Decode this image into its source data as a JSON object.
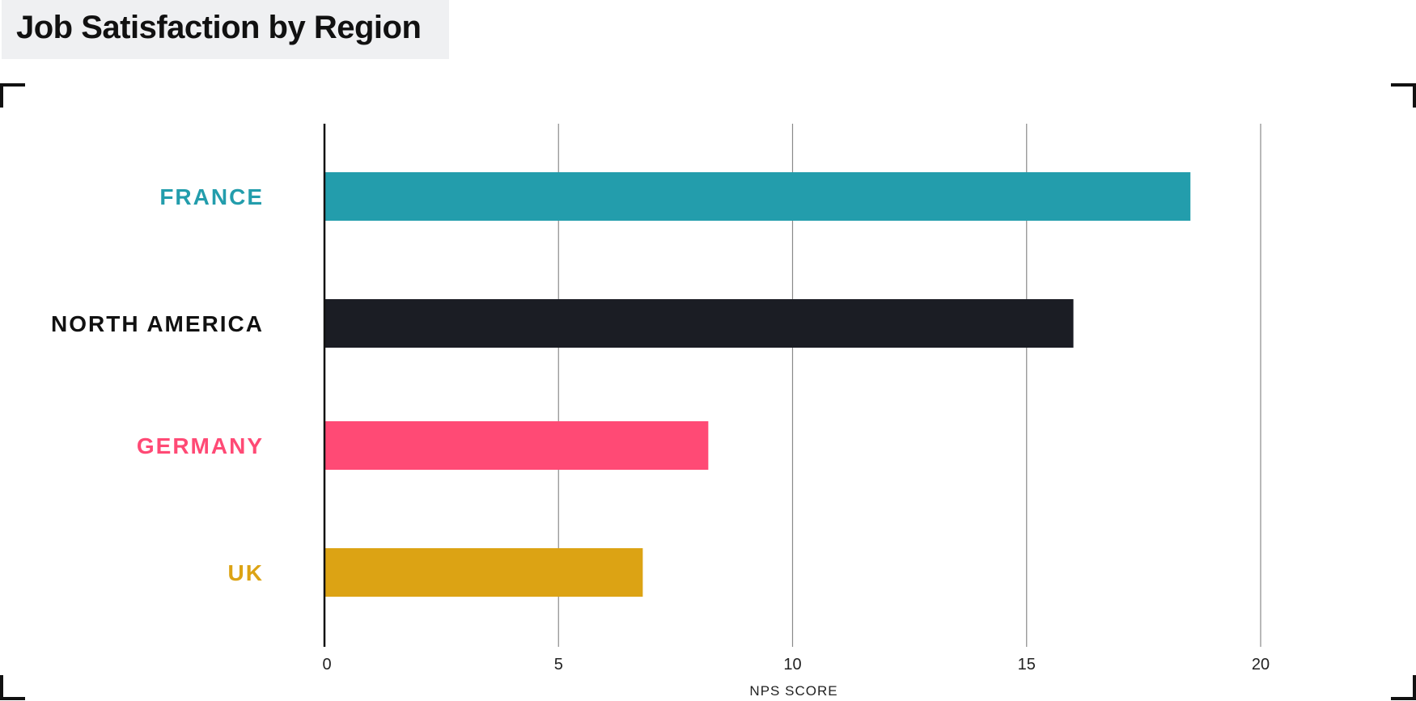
{
  "title": "Job Satisfaction by Region",
  "chart_data": {
    "type": "bar",
    "orientation": "horizontal",
    "categories": [
      "FRANCE",
      "NORTH AMERICA",
      "GERMANY",
      "UK"
    ],
    "values": [
      18.5,
      16.0,
      8.2,
      6.8
    ],
    "colors": [
      "#239dac",
      "#1b1d24",
      "#ff4a75",
      "#dca314"
    ],
    "xlabel": "NPS SCORE",
    "ylabel": "",
    "xlim": [
      0,
      20
    ],
    "x_ticks": [
      "0",
      "5",
      "10",
      "15",
      "20"
    ],
    "grid": "vertical",
    "legend": "none"
  }
}
